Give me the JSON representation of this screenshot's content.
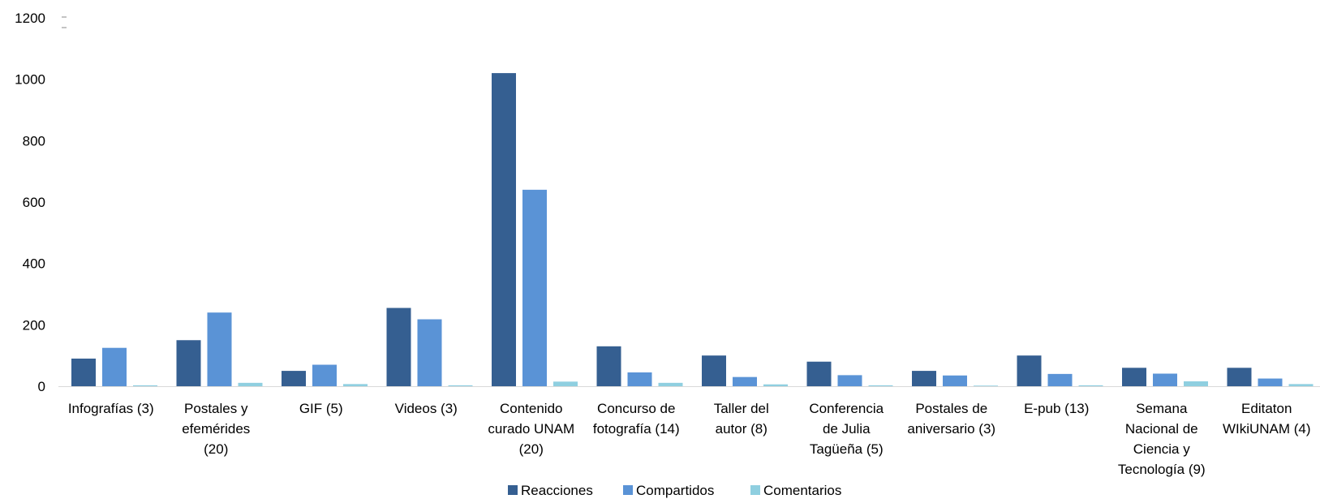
{
  "chart_data": {
    "type": "bar",
    "categories": [
      [
        "Infografías (3)"
      ],
      [
        "Postales y",
        "efemérides",
        "(20)"
      ],
      [
        "GIF (5)"
      ],
      [
        "Videos (3)"
      ],
      [
        "Contenido",
        "curado UNAM",
        "(20)"
      ],
      [
        "Concurso  de",
        "fotografía (14)"
      ],
      [
        "Taller del",
        "autor (8)"
      ],
      [
        "Conferencia",
        "de Julia",
        "Tagüeña (5)"
      ],
      [
        "Postales de",
        "aniversario (3)"
      ],
      [
        "E-pub (13)"
      ],
      [
        "Semana",
        "Nacional de",
        "Ciencia y",
        "Tecnología (9)"
      ],
      [
        "Editaton",
        "WIkiUNAM (4)"
      ]
    ],
    "series": [
      {
        "name": "Reacciones",
        "color": "#355f91",
        "values": [
          90,
          150,
          50,
          255,
          1020,
          130,
          100,
          80,
          50,
          100,
          60,
          60
        ]
      },
      {
        "name": "Compartidos",
        "color": "#5a93d6",
        "values": [
          125,
          240,
          70,
          218,
          640,
          45,
          30,
          36,
          35,
          40,
          41,
          25
        ]
      },
      {
        "name": "Comentarios",
        "color": "#8fcfe0",
        "values": [
          3,
          11,
          7,
          3,
          15,
          11,
          6,
          3,
          2,
          3,
          16,
          7
        ]
      }
    ],
    "yticks": [
      0,
      200,
      400,
      600,
      800,
      1000,
      1200
    ],
    "ylim": [
      0,
      1200
    ],
    "legend_position": "bottom",
    "grid": false
  }
}
